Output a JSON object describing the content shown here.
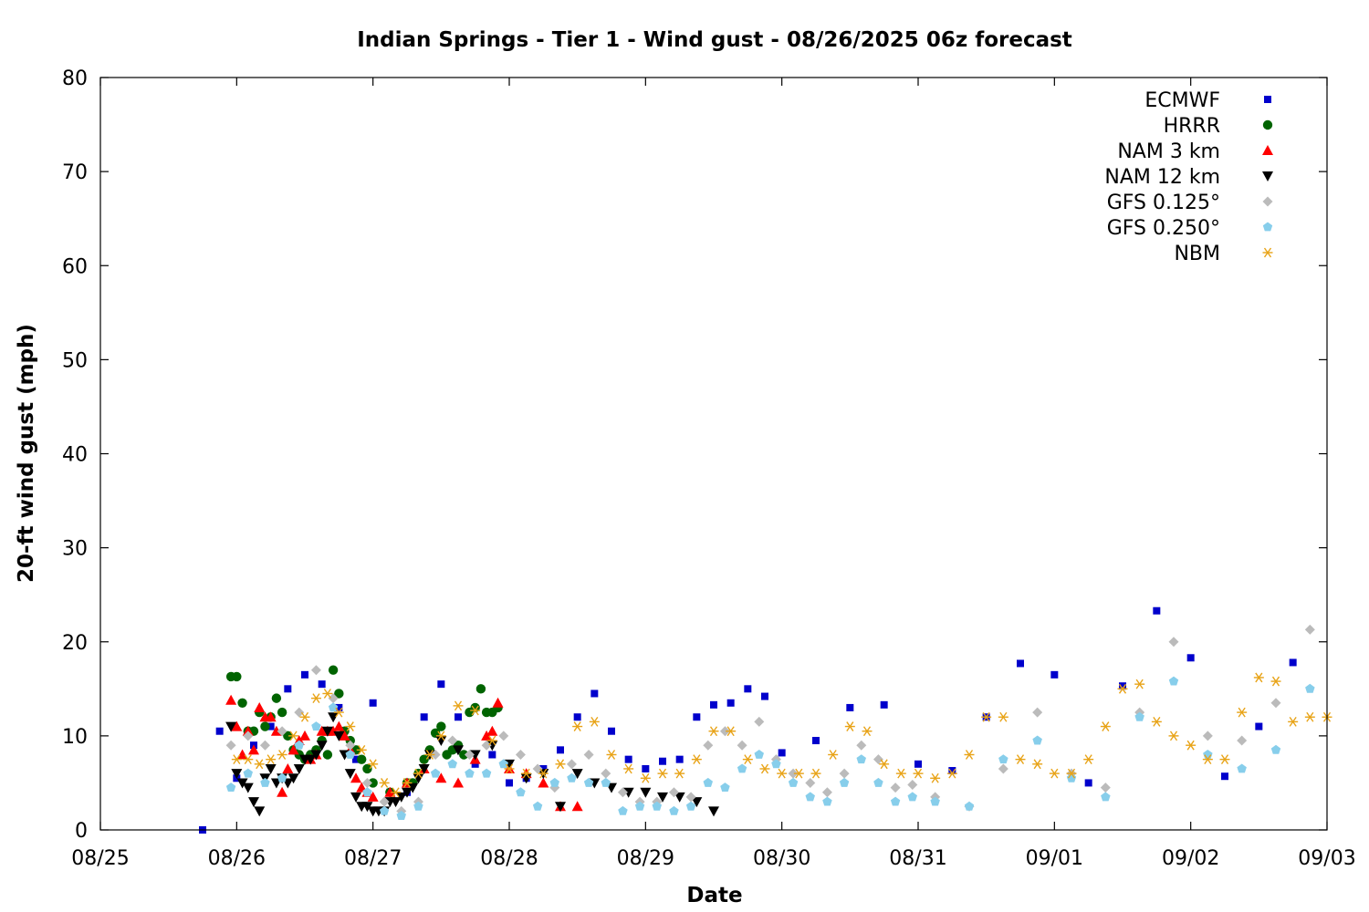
{
  "chart_data": {
    "type": "scatter",
    "title": "Indian Springs - Tier 1 - Wind gust - 08/26/2025 06z forecast",
    "xlabel": "Date",
    "ylabel": "20-ft wind gust (mph)",
    "xlim": [
      "08/25",
      "09/03"
    ],
    "ylim": [
      0,
      80
    ],
    "xticks": [
      "08/25",
      "08/26",
      "08/27",
      "08/28",
      "08/29",
      "08/30",
      "08/31",
      "09/01",
      "09/02",
      "09/03"
    ],
    "yticks": [
      0,
      10,
      20,
      30,
      40,
      50,
      60,
      70,
      80
    ],
    "grid": false,
    "legend_position": "top-right",
    "series": [
      {
        "name": "ECMWF",
        "marker": "square",
        "color": "#0000cc",
        "x": [
          "2025-08-25 18:00",
          "2025-08-25 21:00",
          "2025-08-26 00:00",
          "2025-08-26 03:00",
          "2025-08-26 06:00",
          "2025-08-26 09:00",
          "2025-08-26 12:00",
          "2025-08-26 15:00",
          "2025-08-26 18:00",
          "2025-08-26 21:00",
          "2025-08-27 00:00",
          "2025-08-27 03:00",
          "2025-08-27 06:00",
          "2025-08-27 09:00",
          "2025-08-27 12:00",
          "2025-08-27 15:00",
          "2025-08-27 18:00",
          "2025-08-27 21:00",
          "2025-08-28 00:00",
          "2025-08-28 03:00",
          "2025-08-28 06:00",
          "2025-08-28 09:00",
          "2025-08-28 12:00",
          "2025-08-28 15:00",
          "2025-08-28 18:00",
          "2025-08-28 21:00",
          "2025-08-29 00:00",
          "2025-08-29 03:00",
          "2025-08-29 06:00",
          "2025-08-29 09:00",
          "2025-08-29 12:00",
          "2025-08-29 15:00",
          "2025-08-29 18:00",
          "2025-08-29 21:00",
          "2025-08-30 00:00",
          "2025-08-30 06:00",
          "2025-08-30 12:00",
          "2025-08-30 18:00",
          "2025-08-31 00:00",
          "2025-08-31 06:00",
          "2025-08-31 12:00",
          "2025-08-31 18:00",
          "2025-09-01 00:00",
          "2025-09-01 06:00",
          "2025-09-01 12:00",
          "2025-09-01 18:00",
          "2025-09-02 00:00",
          "2025-09-02 06:00",
          "2025-09-02 12:00",
          "2025-09-02 18:00"
        ],
        "y": [
          0,
          10.5,
          5.5,
          9,
          11,
          15,
          16.5,
          15.5,
          13,
          7.5,
          13.5,
          4,
          4,
          12,
          15.5,
          12,
          7,
          8,
          5,
          5.5,
          6.5,
          8.5,
          12,
          14.5,
          10.5,
          7.5,
          6.5,
          7.3,
          7.5,
          12,
          13.3,
          13.5,
          15,
          14.2,
          8.2,
          9.5,
          13,
          13.3,
          7,
          6.3,
          12,
          17.7,
          16.5,
          5,
          15.3,
          23.3,
          18.3,
          5.7,
          11,
          17.8
        ]
      },
      {
        "name": "HRRR",
        "marker": "circle",
        "color": "#006400",
        "x": [
          "2025-08-25 23:00",
          "2025-08-26 00:00",
          "2025-08-26 01:00",
          "2025-08-26 02:00",
          "2025-08-26 03:00",
          "2025-08-26 04:00",
          "2025-08-26 05:00",
          "2025-08-26 06:00",
          "2025-08-26 07:00",
          "2025-08-26 08:00",
          "2025-08-26 09:00",
          "2025-08-26 10:00",
          "2025-08-26 11:00",
          "2025-08-26 12:00",
          "2025-08-26 13:00",
          "2025-08-26 14:00",
          "2025-08-26 15:00",
          "2025-08-26 16:00",
          "2025-08-26 17:00",
          "2025-08-26 18:00",
          "2025-08-26 19:00",
          "2025-08-26 20:00",
          "2025-08-26 21:00",
          "2025-08-26 22:00",
          "2025-08-26 23:00",
          "2025-08-27 00:00",
          "2025-08-27 03:00",
          "2025-08-27 06:00",
          "2025-08-27 07:00",
          "2025-08-27 08:00",
          "2025-08-27 09:00",
          "2025-08-27 10:00",
          "2025-08-27 11:00",
          "2025-08-27 12:00",
          "2025-08-27 13:00",
          "2025-08-27 14:00",
          "2025-08-27 15:00",
          "2025-08-27 16:00",
          "2025-08-27 17:00",
          "2025-08-27 18:00",
          "2025-08-27 19:00",
          "2025-08-27 20:00",
          "2025-08-27 21:00",
          "2025-08-27 22:00"
        ],
        "y": [
          16.3,
          16.3,
          13.5,
          10.5,
          10.5,
          12.5,
          11,
          12,
          14,
          12.5,
          10,
          8.5,
          8,
          7.5,
          8,
          8.5,
          9.5,
          8,
          17,
          14.5,
          10.5,
          9.5,
          8.5,
          7.5,
          6.5,
          5,
          4,
          5,
          5,
          6,
          7.5,
          8.5,
          10.3,
          11,
          8,
          8.5,
          9,
          8,
          12.5,
          13,
          15,
          12.5,
          12.5,
          13
        ]
      },
      {
        "name": "NAM 3 km",
        "marker": "triangle-up",
        "color": "#ff0000",
        "x": [
          "2025-08-25 23:00",
          "2025-08-26 00:00",
          "2025-08-26 01:00",
          "2025-08-26 02:00",
          "2025-08-26 03:00",
          "2025-08-26 04:00",
          "2025-08-26 05:00",
          "2025-08-26 06:00",
          "2025-08-26 07:00",
          "2025-08-26 08:00",
          "2025-08-26 09:00",
          "2025-08-26 10:00",
          "2025-08-26 11:00",
          "2025-08-26 12:00",
          "2025-08-26 13:00",
          "2025-08-26 14:00",
          "2025-08-26 15:00",
          "2025-08-26 16:00",
          "2025-08-26 17:00",
          "2025-08-26 18:00",
          "2025-08-26 19:00",
          "2025-08-26 20:00",
          "2025-08-26 21:00",
          "2025-08-26 22:00",
          "2025-08-26 23:00",
          "2025-08-27 00:00",
          "2025-08-27 03:00",
          "2025-08-27 06:00",
          "2025-08-27 09:00",
          "2025-08-27 12:00",
          "2025-08-27 15:00",
          "2025-08-27 18:00",
          "2025-08-27 20:00",
          "2025-08-27 21:00",
          "2025-08-27 22:00",
          "2025-08-28 00:00",
          "2025-08-28 03:00",
          "2025-08-28 06:00",
          "2025-08-28 09:00",
          "2025-08-28 12:00"
        ],
        "y": [
          13.8,
          11,
          8,
          10.5,
          8.5,
          13,
          12,
          12,
          10.5,
          4,
          6.5,
          8.5,
          9.5,
          10,
          7.5,
          8,
          10.5,
          10.5,
          10.5,
          11,
          10,
          8.5,
          5.5,
          4.5,
          4,
          3.5,
          4,
          5,
          6.5,
          5.5,
          5,
          7.5,
          10,
          10.5,
          13.5,
          6.5,
          6,
          5,
          2.5,
          2.5
        ]
      },
      {
        "name": "NAM 12 km",
        "marker": "triangle-down",
        "color": "#000000",
        "x": [
          "2025-08-25 23:00",
          "2025-08-26 00:00",
          "2025-08-26 01:00",
          "2025-08-26 02:00",
          "2025-08-26 03:00",
          "2025-08-26 04:00",
          "2025-08-26 05:00",
          "2025-08-26 06:00",
          "2025-08-26 07:00",
          "2025-08-26 08:00",
          "2025-08-26 09:00",
          "2025-08-26 10:00",
          "2025-08-26 11:00",
          "2025-08-26 12:00",
          "2025-08-26 13:00",
          "2025-08-26 14:00",
          "2025-08-26 15:00",
          "2025-08-26 16:00",
          "2025-08-26 17:00",
          "2025-08-26 18:00",
          "2025-08-26 19:00",
          "2025-08-26 20:00",
          "2025-08-26 21:00",
          "2025-08-26 22:00",
          "2025-08-26 23:00",
          "2025-08-27 00:00",
          "2025-08-27 01:00",
          "2025-08-27 02:00",
          "2025-08-27 03:00",
          "2025-08-27 04:00",
          "2025-08-27 05:00",
          "2025-08-27 06:00",
          "2025-08-27 07:00",
          "2025-08-27 08:00",
          "2025-08-27 09:00",
          "2025-08-27 10:00",
          "2025-08-27 12:00",
          "2025-08-27 15:00",
          "2025-08-27 18:00",
          "2025-08-27 21:00",
          "2025-08-28 00:00",
          "2025-08-28 03:00",
          "2025-08-28 06:00",
          "2025-08-28 09:00",
          "2025-08-28 12:00",
          "2025-08-28 15:00",
          "2025-08-28 18:00",
          "2025-08-28 21:00",
          "2025-08-29 00:00",
          "2025-08-29 03:00",
          "2025-08-29 06:00",
          "2025-08-29 09:00",
          "2025-08-29 12:00"
        ],
        "y": [
          11,
          6,
          5,
          4.5,
          3,
          2,
          5.5,
          6.5,
          5,
          5.5,
          5,
          5.5,
          6.5,
          7.5,
          7.5,
          8,
          9,
          10.5,
          12,
          10,
          8,
          6,
          3.5,
          2.5,
          2.5,
          2,
          2,
          2,
          3,
          3,
          3.5,
          4,
          4.5,
          5.5,
          6.5,
          8,
          9.5,
          8.5,
          8,
          9,
          7,
          5.5,
          6,
          2.5,
          6,
          5,
          4.5,
          4,
          4,
          3.5,
          3.5,
          3,
          2
        ]
      },
      {
        "name": "GFS 0.125°",
        "marker": "diamond",
        "color": "#bbbbbb",
        "x": [
          "2025-08-25 23:00",
          "2025-08-26 02:00",
          "2025-08-26 05:00",
          "2025-08-26 08:00",
          "2025-08-26 11:00",
          "2025-08-26 14:00",
          "2025-08-26 17:00",
          "2025-08-26 20:00",
          "2025-08-26 23:00",
          "2025-08-27 02:00",
          "2025-08-27 05:00",
          "2025-08-27 08:00",
          "2025-08-27 11:00",
          "2025-08-27 14:00",
          "2025-08-27 17:00",
          "2025-08-27 20:00",
          "2025-08-27 23:00",
          "2025-08-28 02:00",
          "2025-08-28 05:00",
          "2025-08-28 08:00",
          "2025-08-28 11:00",
          "2025-08-28 14:00",
          "2025-08-28 17:00",
          "2025-08-28 20:00",
          "2025-08-28 23:00",
          "2025-08-29 02:00",
          "2025-08-29 05:00",
          "2025-08-29 08:00",
          "2025-08-29 11:00",
          "2025-08-29 14:00",
          "2025-08-29 17:00",
          "2025-08-29 20:00",
          "2025-08-29 23:00",
          "2025-08-30 02:00",
          "2025-08-30 05:00",
          "2025-08-30 08:00",
          "2025-08-30 11:00",
          "2025-08-30 14:00",
          "2025-08-30 17:00",
          "2025-08-30 20:00",
          "2025-08-30 23:00",
          "2025-08-31 03:00",
          "2025-08-31 09:00",
          "2025-08-31 15:00",
          "2025-08-31 21:00",
          "2025-09-01 03:00",
          "2025-09-01 09:00",
          "2025-09-01 15:00",
          "2025-09-01 21:00",
          "2025-09-02 03:00",
          "2025-09-02 09:00",
          "2025-09-02 15:00",
          "2025-09-02 21:00"
        ],
        "y": [
          9,
          10,
          9,
          10.5,
          12.5,
          17,
          14,
          9,
          5,
          3,
          2,
          3,
          8,
          9.5,
          8,
          9,
          10,
          8,
          6.5,
          4.5,
          7,
          8,
          6,
          4,
          3,
          3,
          4,
          3.5,
          9,
          10.5,
          9,
          11.5,
          7.5,
          6,
          5,
          4,
          6,
          9,
          7.5,
          4.5,
          4.8,
          3.5,
          2.5,
          6.5,
          12.5,
          6,
          4.5,
          12.5,
          20,
          10,
          9.5,
          13.5,
          21.3
        ]
      },
      {
        "name": "GFS 0.250°",
        "marker": "pentagon",
        "color": "#87ceeb",
        "x": [
          "2025-08-25 23:00",
          "2025-08-26 02:00",
          "2025-08-26 05:00",
          "2025-08-26 08:00",
          "2025-08-26 11:00",
          "2025-08-26 14:00",
          "2025-08-26 17:00",
          "2025-08-26 20:00",
          "2025-08-26 23:00",
          "2025-08-27 02:00",
          "2025-08-27 05:00",
          "2025-08-27 08:00",
          "2025-08-27 11:00",
          "2025-08-27 14:00",
          "2025-08-27 17:00",
          "2025-08-27 20:00",
          "2025-08-27 23:00",
          "2025-08-28 02:00",
          "2025-08-28 05:00",
          "2025-08-28 08:00",
          "2025-08-28 11:00",
          "2025-08-28 14:00",
          "2025-08-28 17:00",
          "2025-08-28 20:00",
          "2025-08-28 23:00",
          "2025-08-29 02:00",
          "2025-08-29 05:00",
          "2025-08-29 08:00",
          "2025-08-29 11:00",
          "2025-08-29 14:00",
          "2025-08-29 17:00",
          "2025-08-29 20:00",
          "2025-08-29 23:00",
          "2025-08-30 02:00",
          "2025-08-30 05:00",
          "2025-08-30 08:00",
          "2025-08-30 11:00",
          "2025-08-30 14:00",
          "2025-08-30 17:00",
          "2025-08-30 20:00",
          "2025-08-30 23:00",
          "2025-08-31 03:00",
          "2025-08-31 09:00",
          "2025-08-31 15:00",
          "2025-08-31 21:00",
          "2025-09-01 03:00",
          "2025-09-01 09:00",
          "2025-09-01 15:00",
          "2025-09-01 21:00",
          "2025-09-02 03:00",
          "2025-09-02 09:00",
          "2025-09-02 15:00",
          "2025-09-02 21:00"
        ],
        "y": [
          4.5,
          6,
          5,
          5.5,
          9,
          11,
          13,
          8,
          4,
          2,
          1.5,
          2.5,
          6,
          7,
          6,
          6,
          7,
          4,
          2.5,
          5,
          5.5,
          5,
          5,
          2,
          2.5,
          2.5,
          2,
          2.5,
          5,
          4.5,
          6.5,
          8,
          7,
          5,
          3.5,
          3,
          5,
          7.5,
          5,
          3,
          3.5,
          3,
          2.5,
          7.5,
          9.5,
          5.5,
          3.5,
          12,
          15.8,
          8,
          6.5,
          8.5,
          15
        ]
      },
      {
        "name": "NBM",
        "marker": "asterisk",
        "color": "#e8a317",
        "x": [
          "2025-08-26 00:00",
          "2025-08-26 02:00",
          "2025-08-26 04:00",
          "2025-08-26 06:00",
          "2025-08-26 08:00",
          "2025-08-26 10:00",
          "2025-08-26 12:00",
          "2025-08-26 14:00",
          "2025-08-26 16:00",
          "2025-08-26 18:00",
          "2025-08-26 20:00",
          "2025-08-26 22:00",
          "2025-08-27 00:00",
          "2025-08-27 02:00",
          "2025-08-27 04:00",
          "2025-08-27 06:00",
          "2025-08-27 08:00",
          "2025-08-27 10:00",
          "2025-08-27 12:00",
          "2025-08-27 15:00",
          "2025-08-27 18:00",
          "2025-08-27 21:00",
          "2025-08-28 00:00",
          "2025-08-28 03:00",
          "2025-08-28 06:00",
          "2025-08-28 09:00",
          "2025-08-28 12:00",
          "2025-08-28 15:00",
          "2025-08-28 18:00",
          "2025-08-28 21:00",
          "2025-08-29 00:00",
          "2025-08-29 03:00",
          "2025-08-29 06:00",
          "2025-08-29 09:00",
          "2025-08-29 12:00",
          "2025-08-29 15:00",
          "2025-08-29 18:00",
          "2025-08-29 21:00",
          "2025-08-30 00:00",
          "2025-08-30 03:00",
          "2025-08-30 06:00",
          "2025-08-30 09:00",
          "2025-08-30 12:00",
          "2025-08-30 15:00",
          "2025-08-30 18:00",
          "2025-08-30 21:00",
          "2025-08-31 00:00",
          "2025-08-31 03:00",
          "2025-08-31 06:00",
          "2025-08-31 09:00",
          "2025-08-31 12:00",
          "2025-08-31 15:00",
          "2025-08-31 18:00",
          "2025-08-31 21:00",
          "2025-09-01 00:00",
          "2025-09-01 03:00",
          "2025-09-01 06:00",
          "2025-09-01 09:00",
          "2025-09-01 12:00",
          "2025-09-01 15:00",
          "2025-09-01 18:00",
          "2025-09-01 21:00",
          "2025-09-02 00:00",
          "2025-09-02 03:00",
          "2025-09-02 06:00",
          "2025-09-02 09:00",
          "2025-09-02 12:00",
          "2025-09-02 15:00",
          "2025-09-02 18:00",
          "2025-09-02 21:00",
          "2025-09-03 00:00"
        ],
        "y": [
          7.5,
          7.5,
          7,
          7.5,
          8,
          10,
          12,
          14,
          14.5,
          12.5,
          11,
          8.5,
          7,
          5,
          4,
          5,
          6,
          8,
          10,
          13.2,
          12.7,
          9.5,
          6.5,
          6,
          6,
          7,
          11,
          11.5,
          8,
          6.5,
          5.5,
          6,
          6,
          7.5,
          10.5,
          10.5,
          7.5,
          6.5,
          6,
          6,
          6,
          8,
          11,
          10.5,
          7,
          6,
          6,
          5.5,
          6,
          8,
          12,
          12,
          7.5,
          7,
          6,
          6,
          7.5,
          11,
          15,
          15.5,
          11.5,
          10,
          9,
          7.5,
          7.5,
          12.5,
          16.2,
          15.8,
          11.5,
          12,
          12
        ]
      }
    ]
  }
}
